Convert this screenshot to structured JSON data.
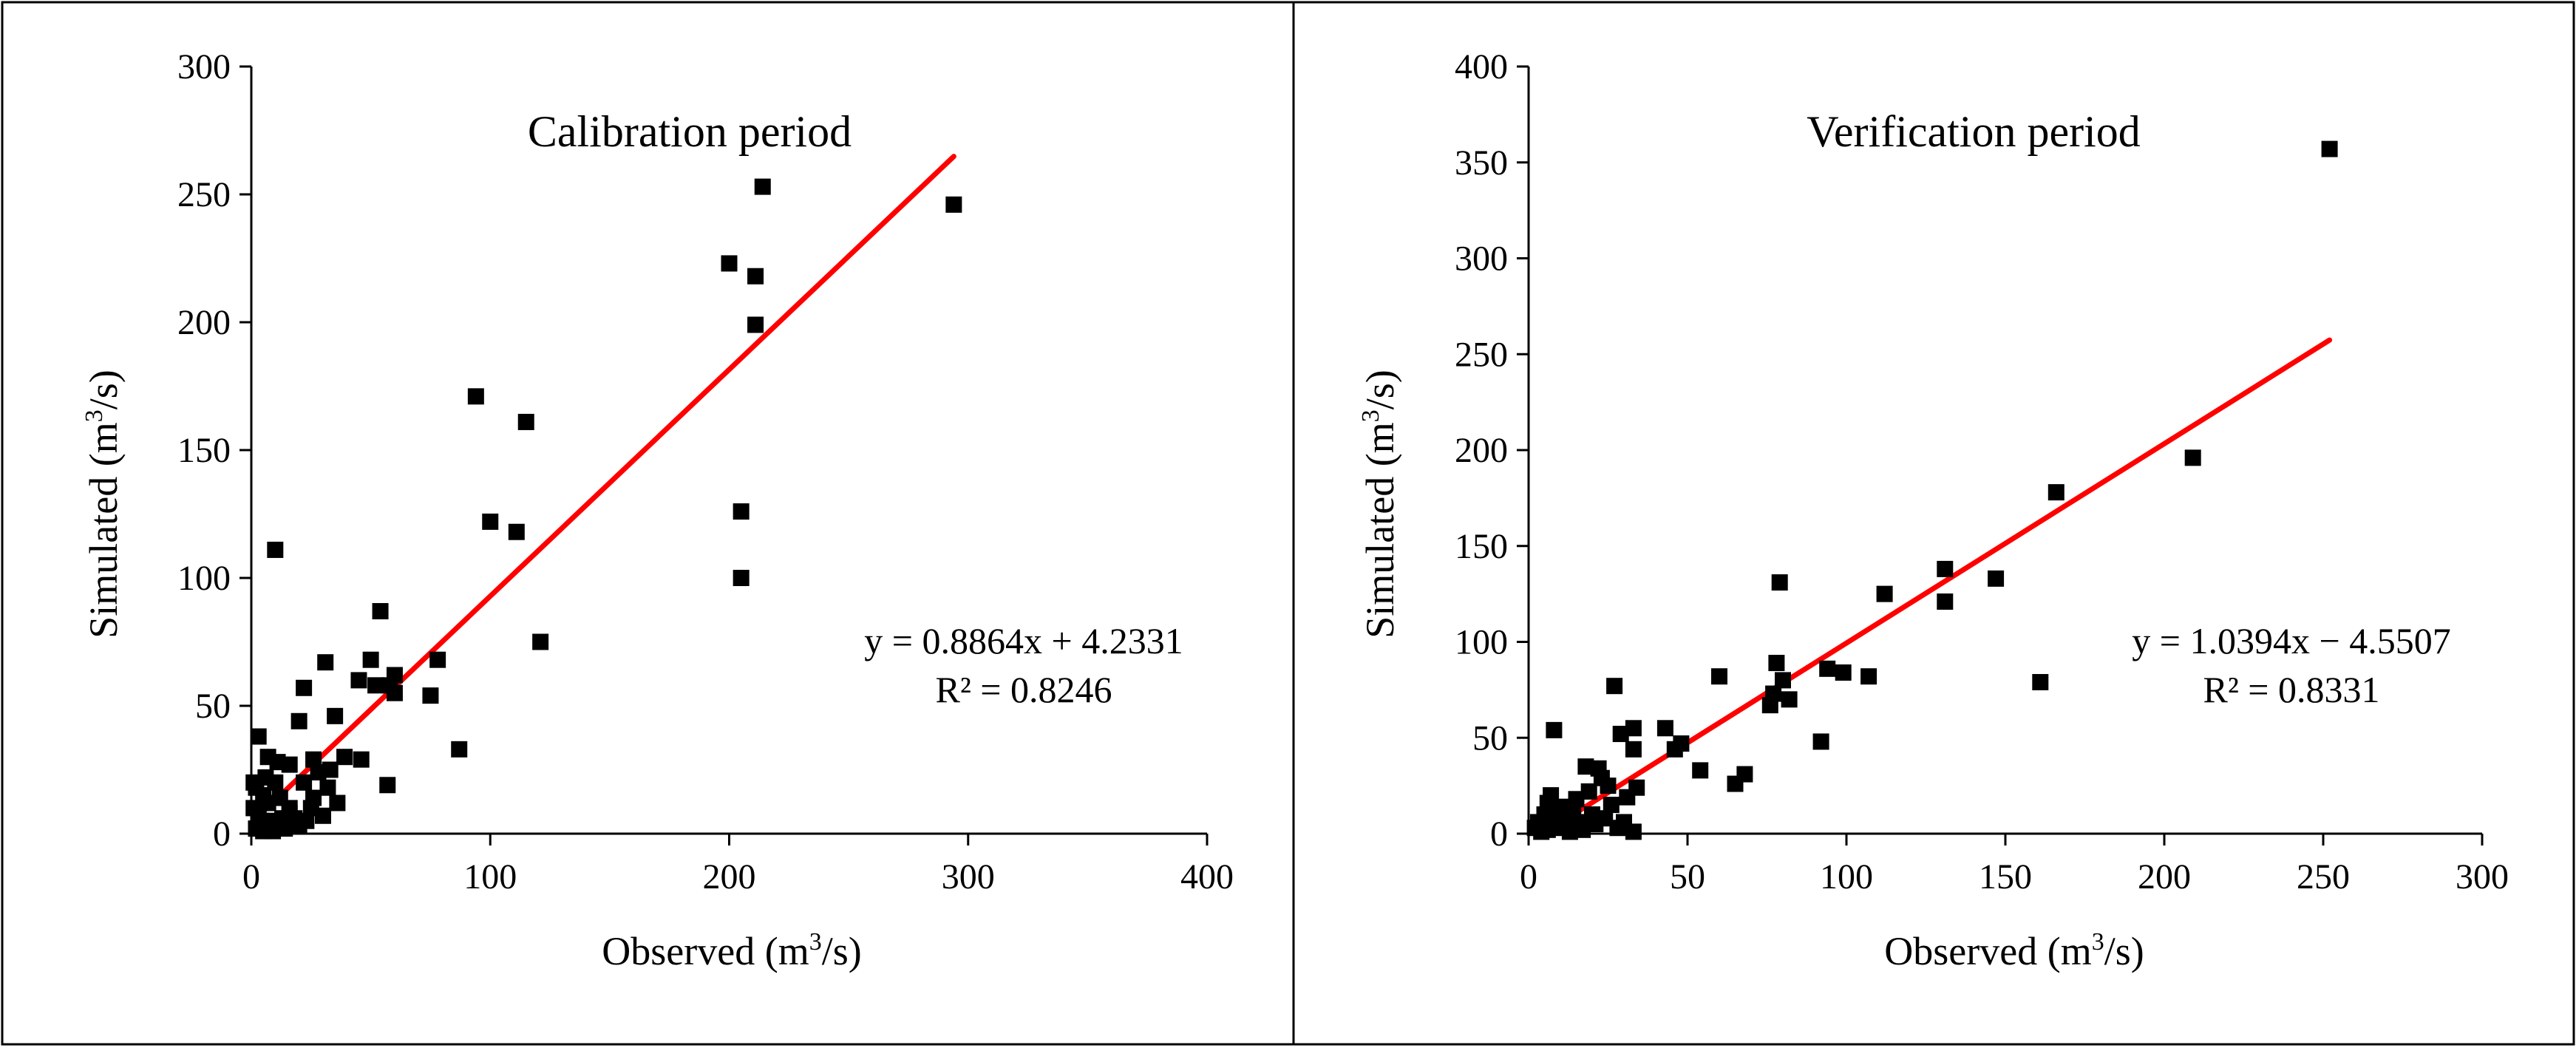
{
  "chart_data": [
    {
      "type": "scatter",
      "title": "Calibration period",
      "xlabel_base": "Observed (m",
      "xlabel_sup": "3",
      "xlabel_tail": "/s)",
      "ylabel_base": "Simulated (m",
      "ylabel_sup": "3",
      "ylabel_tail": "/s)",
      "xlim": [
        0,
        400
      ],
      "ylim": [
        0,
        300
      ],
      "xticks": [
        0,
        100,
        200,
        300,
        400
      ],
      "yticks": [
        0,
        50,
        100,
        150,
        200,
        250,
        300
      ],
      "grid": false,
      "trendline": {
        "slope": 0.8864,
        "intercept": 4.2331,
        "x_range": [
          2,
          294
        ],
        "color": "#ff0000"
      },
      "equation": "y = 0.8864x + 4.2331",
      "r2": "R² = 0.8246",
      "marker_color": "#000000",
      "points": [
        [
          294,
          246
        ],
        [
          214,
          253
        ],
        [
          200,
          223
        ],
        [
          211,
          218
        ],
        [
          211,
          199
        ],
        [
          205,
          126
        ],
        [
          205,
          100
        ],
        [
          94,
          171
        ],
        [
          115,
          161
        ],
        [
          100,
          122
        ],
        [
          111,
          118
        ],
        [
          121,
          75
        ],
        [
          87,
          33
        ],
        [
          75,
          54
        ],
        [
          78,
          68
        ],
        [
          54,
          87
        ],
        [
          50,
          68
        ],
        [
          60,
          62
        ],
        [
          58,
          58
        ],
        [
          60,
          55
        ],
        [
          52,
          58
        ],
        [
          45,
          60
        ],
        [
          57,
          19
        ],
        [
          10,
          111
        ],
        [
          22,
          57
        ],
        [
          31,
          67
        ],
        [
          35,
          46
        ],
        [
          20,
          44
        ],
        [
          3,
          38
        ],
        [
          7,
          30
        ],
        [
          11,
          28
        ],
        [
          16,
          27
        ],
        [
          26,
          29
        ],
        [
          33,
          25
        ],
        [
          39,
          30
        ],
        [
          46,
          29
        ],
        [
          28,
          24
        ],
        [
          36,
          12
        ],
        [
          25,
          10
        ],
        [
          16,
          8
        ],
        [
          5,
          15
        ],
        [
          2,
          18
        ],
        [
          1,
          20
        ],
        [
          3,
          8
        ],
        [
          8,
          5
        ],
        [
          12,
          3
        ],
        [
          2,
          2
        ],
        [
          5,
          1
        ],
        [
          9,
          1
        ],
        [
          14,
          2
        ],
        [
          18,
          6
        ],
        [
          23,
          5
        ],
        [
          30,
          7
        ],
        [
          20,
          3
        ],
        [
          16,
          10
        ],
        [
          12,
          14
        ],
        [
          7,
          12
        ],
        [
          4,
          5
        ],
        [
          1,
          10
        ],
        [
          10,
          20
        ],
        [
          6,
          22
        ],
        [
          13,
          6
        ],
        [
          26,
          14
        ],
        [
          22,
          20
        ],
        [
          32,
          18
        ]
      ]
    },
    {
      "type": "scatter",
      "title": "Verification period",
      "xlabel_base": "Observed (m",
      "xlabel_sup": "3",
      "xlabel_tail": "/s)",
      "ylabel_base": "Simulated (m",
      "ylabel_sup": "3",
      "ylabel_tail": "/s)",
      "xlim": [
        0,
        300
      ],
      "ylim": [
        0,
        400
      ],
      "xticks": [
        0,
        50,
        100,
        150,
        200,
        250,
        300
      ],
      "yticks": [
        0,
        50,
        100,
        150,
        200,
        250,
        300,
        350,
        400
      ],
      "grid": false,
      "trendline": {
        "slope": 1.0394,
        "intercept": -4.5507,
        "x_range": [
          5,
          252
        ],
        "color": "#ff0000"
      },
      "equation": "y = 1.0394x − 4.5507",
      "r2": "R² = 0.8331",
      "marker_color": "#000000",
      "points": [
        [
          252,
          357
        ],
        [
          209,
          196
        ],
        [
          166,
          178
        ],
        [
          161,
          79
        ],
        [
          147,
          133
        ],
        [
          131,
          138
        ],
        [
          131,
          121
        ],
        [
          112,
          125
        ],
        [
          107,
          82
        ],
        [
          99,
          84
        ],
        [
          94,
          86
        ],
        [
          92,
          48
        ],
        [
          82,
          70
        ],
        [
          80,
          80
        ],
        [
          79,
          131
        ],
        [
          78,
          89
        ],
        [
          77,
          73
        ],
        [
          76,
          67
        ],
        [
          60,
          82
        ],
        [
          68,
          31
        ],
        [
          65,
          26
        ],
        [
          54,
          33
        ],
        [
          48,
          47
        ],
        [
          46,
          44
        ],
        [
          43,
          55
        ],
        [
          34,
          24
        ],
        [
          33,
          44
        ],
        [
          33,
          55
        ],
        [
          31,
          19
        ],
        [
          29,
          52
        ],
        [
          27,
          77
        ],
        [
          25,
          25
        ],
        [
          23,
          29
        ],
        [
          22,
          34
        ],
        [
          20,
          10
        ],
        [
          18,
          35
        ],
        [
          19,
          22
        ],
        [
          16,
          6
        ],
        [
          14,
          12
        ],
        [
          12,
          5
        ],
        [
          10,
          3
        ],
        [
          8,
          54
        ],
        [
          7,
          20
        ],
        [
          6,
          16
        ],
        [
          5,
          10
        ],
        [
          3,
          6
        ],
        [
          2,
          3
        ],
        [
          4,
          1
        ],
        [
          9,
          8
        ],
        [
          11,
          14
        ],
        [
          15,
          18
        ],
        [
          21,
          5
        ],
        [
          24,
          8
        ],
        [
          28,
          3
        ],
        [
          33,
          1
        ],
        [
          30,
          6
        ],
        [
          26,
          15
        ],
        [
          17,
          2
        ],
        [
          13,
          1
        ],
        [
          6,
          2
        ]
      ]
    }
  ]
}
